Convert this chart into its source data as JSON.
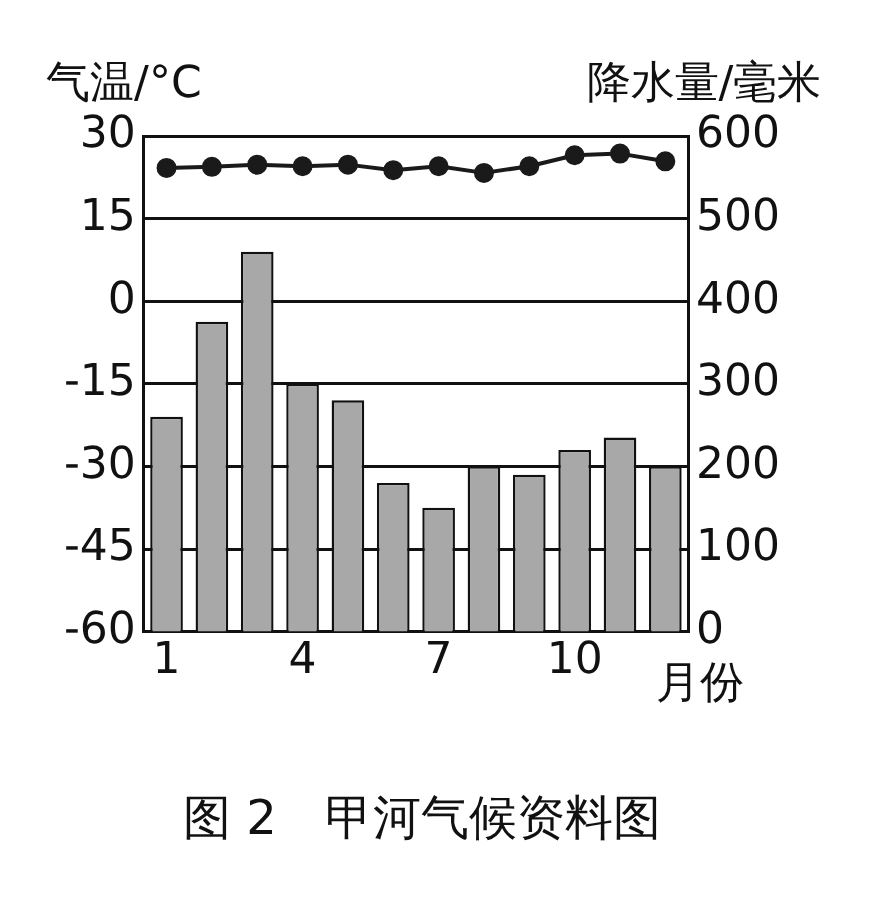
{
  "chart_data": {
    "type": "bar",
    "title": "图 2　甲河气候资料图",
    "xlabel": "月份",
    "ylabel": "气温/°C",
    "y2label": "降水量/毫米",
    "categories": [
      "1",
      null,
      null,
      "4",
      null,
      null,
      "7",
      null,
      null,
      "10",
      null,
      null
    ],
    "series": [
      {
        "type": "line",
        "axis": "y",
        "color": "#1a1a1a",
        "marker": "circle",
        "values": [
          24.2,
          24.4,
          24.8,
          24.5,
          24.8,
          23.8,
          24.5,
          23.3,
          24.5,
          26.5,
          26.8,
          25.4
        ]
      },
      {
        "axis": "y2",
        "color": "#a8a8a8",
        "values": [
          260,
          375,
          460,
          300,
          280,
          180,
          150,
          200,
          190,
          220,
          235,
          200
        ]
      }
    ],
    "ylim": [
      -60,
      30
    ],
    "yticks": [
      -60,
      -45,
      -30,
      -15,
      0,
      15,
      30
    ],
    "y2lim": [
      0,
      600
    ],
    "y2ticks": [
      0,
      100,
      200,
      300,
      400,
      500,
      600
    ],
    "grid": "y",
    "legend": false
  }
}
